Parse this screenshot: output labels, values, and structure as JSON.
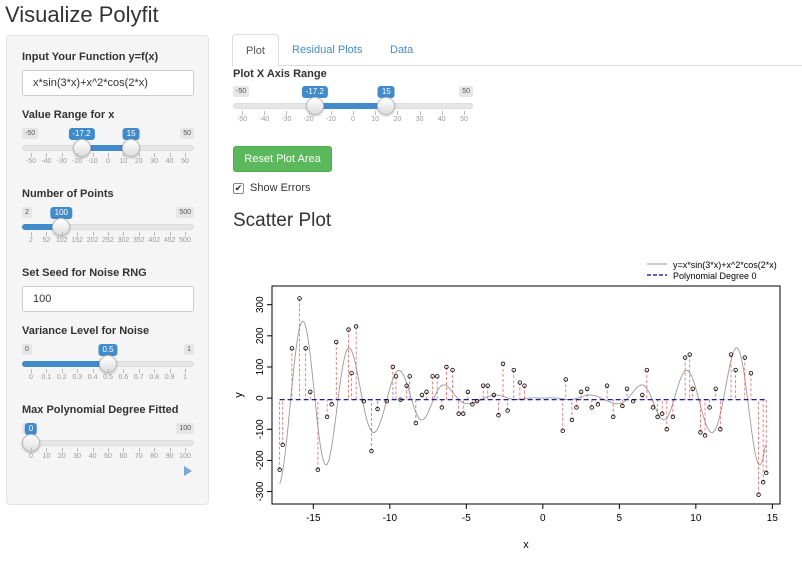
{
  "app_title": "Visualize Polyfit",
  "sidebar": {
    "function_label": "Input Your Function y=f(x)",
    "function_value": "x*sin(3*x)+x^2*cos(2*x)",
    "range_label": "Value Range for x",
    "range_slider": {
      "min": "-50",
      "max": "50",
      "low": "-17.2",
      "high": "15",
      "low_num": -17.2,
      "high_num": 15,
      "min_num": -50,
      "max_num": 50,
      "ticks": [
        "-50",
        "-40",
        "-30",
        "-20",
        "-10",
        "0",
        "10",
        "20",
        "30",
        "40",
        "50"
      ]
    },
    "points_label": "Number of Points",
    "points_slider": {
      "min": "2",
      "max": "500",
      "value": "100",
      "value_num": 100,
      "min_num": 2,
      "max_num": 500,
      "ticks": [
        "2",
        "52",
        "102",
        "152",
        "202",
        "252",
        "302",
        "352",
        "402",
        "452",
        "500"
      ]
    },
    "seed_label": "Set Seed for Noise RNG",
    "seed_value": "100",
    "variance_label": "Variance Level for Noise",
    "variance_slider": {
      "min": "0",
      "max": "1",
      "value": "0.5",
      "value_num": 0.5,
      "min_num": 0,
      "max_num": 1,
      "ticks": [
        "0",
        "0.1",
        "0.2",
        "0.3",
        "0.4",
        "0.5",
        "0.6",
        "0.7",
        "0.8",
        "0.9",
        "1"
      ]
    },
    "degree_label": "Max Polynomial Degree Fitted",
    "degree_slider": {
      "min": "0",
      "max": "100",
      "value": "0",
      "value_num": 0,
      "min_num": 0,
      "max_num": 100,
      "ticks": [
        "0",
        "10",
        "20",
        "30",
        "40",
        "50",
        "60",
        "70",
        "80",
        "90",
        "100"
      ]
    }
  },
  "tabs": [
    "Plot",
    "Residual Plots",
    "Data"
  ],
  "main": {
    "x_range_label": "Plot X Axis Range",
    "x_range_slider": {
      "min": "-50",
      "max": "50",
      "low": "-17.2",
      "high": "15",
      "low_num": -17.2,
      "high_num": 15,
      "min_num": -50,
      "max_num": 50,
      "ticks": [
        "-50",
        "-40",
        "-30",
        "-20",
        "-10",
        "0",
        "10",
        "20",
        "30",
        "40",
        "50"
      ]
    },
    "reset_button": "Reset Plot Area",
    "show_errors_label": "Show Errors",
    "show_errors_checked": "✔",
    "plot_heading": "Scatter Plot"
  },
  "chart_data": {
    "type": "scatter",
    "title": "",
    "xlabel": "x",
    "ylabel": "y",
    "xlim": [
      -17.7,
      15.5
    ],
    "ylim": [
      -340,
      360
    ],
    "x_ticks": [
      -15,
      -10,
      -5,
      0,
      5,
      10,
      15
    ],
    "y_ticks": [
      -300,
      -200,
      -100,
      0,
      100,
      200,
      300
    ],
    "legend": [
      "y=x*sin(3*x)+x^2*cos(2*x)",
      "Polynomial Degree 0"
    ],
    "legend_position": "top-right",
    "colors": {
      "true_curve": "#999999",
      "poly_fit": "#00008b",
      "errors": "#e06666",
      "points": "#000000"
    },
    "fit_value": -5,
    "x": [
      -17.2,
      -17.0,
      -16.4,
      -15.9,
      -15.5,
      -15.2,
      -14.7,
      -14.1,
      -13.8,
      -13.5,
      -12.7,
      -12.5,
      -12.2,
      -11.7,
      -11.2,
      -10.8,
      -10.2,
      -9.8,
      -9.6,
      -9.3,
      -8.9,
      -8.7,
      -8.3,
      -7.9,
      -7.6,
      -7.2,
      -6.9,
      -6.6,
      -6.3,
      -5.9,
      -5.5,
      -5.2,
      -4.9,
      -4.6,
      -4.3,
      -3.9,
      -3.6,
      -3.2,
      -2.9,
      -2.6,
      -2.3,
      -1.9,
      -1.5,
      -1.2,
      1.3,
      1.5,
      1.9,
      2.2,
      2.5,
      2.9,
      3.2,
      3.6,
      4.2,
      4.6,
      5.2,
      5.5,
      5.9,
      6.5,
      6.8,
      7.2,
      7.5,
      7.8,
      8.1,
      8.5,
      9.3,
      9.6,
      9.8,
      10.3,
      10.6,
      10.9,
      11.3,
      11.6,
      12.3,
      12.6,
      13.2,
      13.6,
      14.1,
      14.4,
      14.6
    ],
    "y": [
      -230,
      -150,
      160,
      320,
      160,
      20,
      -230,
      -60,
      -20,
      180,
      220,
      80,
      230,
      -10,
      -170,
      -35,
      -10,
      100,
      70,
      -5,
      40,
      70,
      -80,
      10,
      20,
      70,
      70,
      -30,
      100,
      90,
      -50,
      -50,
      20,
      -20,
      -10,
      40,
      40,
      10,
      -55,
      110,
      -40,
      90,
      50,
      40,
      -105,
      60,
      -70,
      -30,
      20,
      30,
      -30,
      -20,
      40,
      -60,
      -25,
      30,
      -10,
      10,
      90,
      -30,
      -60,
      -50,
      -100,
      -60,
      130,
      140,
      30,
      -110,
      -120,
      -30,
      30,
      -100,
      140,
      90,
      130,
      80,
      -310,
      -270,
      -240
    ]
  }
}
